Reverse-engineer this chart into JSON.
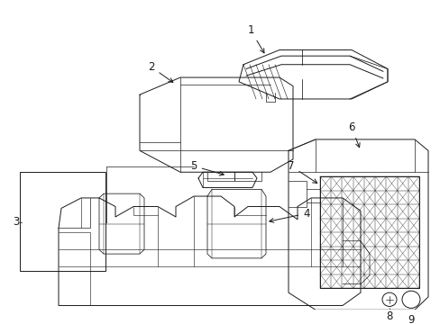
{
  "background_color": "#ffffff",
  "line_color": "#1a1a1a",
  "text_color": "#1a1a1a",
  "figsize": [
    4.89,
    3.6
  ],
  "dpi": 100,
  "label_fontsize": 8.5,
  "line_width": 0.7
}
